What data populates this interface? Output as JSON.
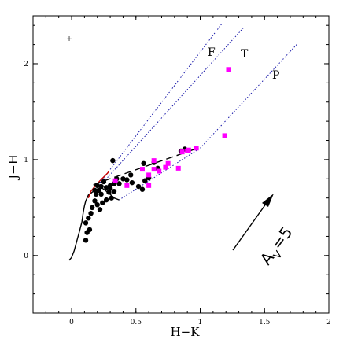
{
  "chart_data": {
    "type": "scatter",
    "title": "",
    "xlabel": "H−K",
    "ylabel": "J−H",
    "xlim": [
      -0.3,
      2.0
    ],
    "ylim": [
      -0.6,
      2.5
    ],
    "xticks": [
      "0",
      "0.5",
      "1",
      "1.5",
      "2"
    ],
    "yticks": [
      "0",
      "1",
      "2"
    ],
    "xtick_values": [
      0,
      0.5,
      1,
      1.5,
      2
    ],
    "ytick_values": [
      0,
      1,
      2
    ],
    "grid": false,
    "series": [
      {
        "marker": "circle",
        "color": "#000000",
        "points": [
          [
            0.11,
            0.16
          ],
          [
            0.12,
            0.24
          ],
          [
            0.14,
            0.27
          ],
          [
            0.11,
            0.34
          ],
          [
            0.13,
            0.39
          ],
          [
            0.15,
            0.44
          ],
          [
            0.16,
            0.5
          ],
          [
            0.18,
            0.57
          ],
          [
            0.19,
            0.64
          ],
          [
            0.18,
            0.68
          ],
          [
            0.2,
            0.73
          ],
          [
            0.21,
            0.68
          ],
          [
            0.23,
            0.64
          ],
          [
            0.23,
            0.72
          ],
          [
            0.25,
            0.77
          ],
          [
            0.27,
            0.71
          ],
          [
            0.29,
            0.66
          ],
          [
            0.31,
            0.6
          ],
          [
            0.3,
            0.7
          ],
          [
            0.33,
            0.75
          ],
          [
            0.33,
            0.67
          ],
          [
            0.35,
            0.8
          ],
          [
            0.37,
            0.75
          ],
          [
            0.4,
            0.8
          ],
          [
            0.43,
            0.79
          ],
          [
            0.47,
            0.76
          ],
          [
            0.52,
            0.72
          ],
          [
            0.55,
            0.69
          ],
          [
            0.57,
            0.78
          ],
          [
            0.56,
            0.96
          ],
          [
            0.6,
            0.81
          ],
          [
            0.64,
            0.97
          ],
          [
            0.67,
            0.91
          ],
          [
            0.32,
            0.99
          ],
          [
            0.27,
            0.58
          ],
          [
            0.24,
            0.55
          ],
          [
            0.2,
            0.53
          ],
          [
            0.22,
            0.48
          ],
          [
            0.3,
            0.73
          ],
          [
            0.46,
            0.84
          ],
          [
            0.85,
            1.09
          ],
          [
            0.88,
            1.11
          ]
        ]
      },
      {
        "marker": "square",
        "color": "#ff00ff",
        "points": [
          [
            0.34,
            0.78
          ],
          [
            0.43,
            0.73
          ],
          [
            0.55,
            0.9
          ],
          [
            0.6,
            0.84
          ],
          [
            0.6,
            0.73
          ],
          [
            0.64,
            0.9
          ],
          [
            0.64,
            0.99
          ],
          [
            0.68,
            0.88
          ],
          [
            0.73,
            0.92
          ],
          [
            0.75,
            0.96
          ],
          [
            0.83,
            0.91
          ],
          [
            0.86,
            1.08
          ],
          [
            0.91,
            1.1
          ],
          [
            0.97,
            1.12
          ],
          [
            0.9,
            1.09
          ],
          [
            1.19,
            1.25
          ],
          [
            1.22,
            1.94
          ]
        ]
      }
    ],
    "lines": {
      "main_sequence_black": [
        [
          -0.02,
          -0.05
        ],
        [
          0.0,
          -0.02
        ],
        [
          0.02,
          0.05
        ],
        [
          0.04,
          0.15
        ],
        [
          0.06,
          0.25
        ],
        [
          0.08,
          0.35
        ],
        [
          0.09,
          0.45
        ],
        [
          0.1,
          0.52
        ],
        [
          0.11,
          0.57
        ],
        [
          0.12,
          0.6
        ],
        [
          0.13,
          0.63
        ],
        [
          0.15,
          0.65
        ],
        [
          0.17,
          0.67
        ]
      ],
      "giant_branch_red": [
        [
          0.13,
          0.6
        ],
        [
          0.15,
          0.67
        ],
        [
          0.18,
          0.72
        ],
        [
          0.22,
          0.78
        ],
        [
          0.25,
          0.82
        ],
        [
          0.28,
          0.86
        ],
        [
          0.29,
          0.88
        ]
      ],
      "ctts_locus_dashed": [
        [
          0.17,
          0.74
        ],
        [
          0.98,
          1.12
        ]
      ],
      "ctts_locus_solid": [
        [
          0.17,
          0.74
        ],
        [
          0.24,
          0.7
        ],
        [
          0.29,
          0.65
        ],
        [
          0.33,
          0.6
        ],
        [
          0.37,
          0.58
        ]
      ],
      "reddening_F": [
        [
          0.17,
          0.67
        ],
        [
          1.17,
          2.42
        ]
      ],
      "reddening_T": [
        [
          0.25,
          0.77
        ],
        [
          1.34,
          2.38
        ]
      ],
      "reddening_P_upper": [
        [
          0.37,
          0.58
        ],
        [
          1.0,
          1.12
        ]
      ],
      "reddening_P": [
        [
          1.0,
          1.12
        ],
        [
          1.75,
          2.2
        ]
      ]
    },
    "annotations": {
      "F": "F",
      "T": "T",
      "P": "P",
      "reddening_vector": "A",
      "reddening_sub": "V",
      "reddening_value": "=5",
      "error_marker": "+"
    }
  },
  "colors": {
    "black": "#000000",
    "magenta": "#ff00ff",
    "red": "#cc0000",
    "blue": "#1a1aaa"
  }
}
